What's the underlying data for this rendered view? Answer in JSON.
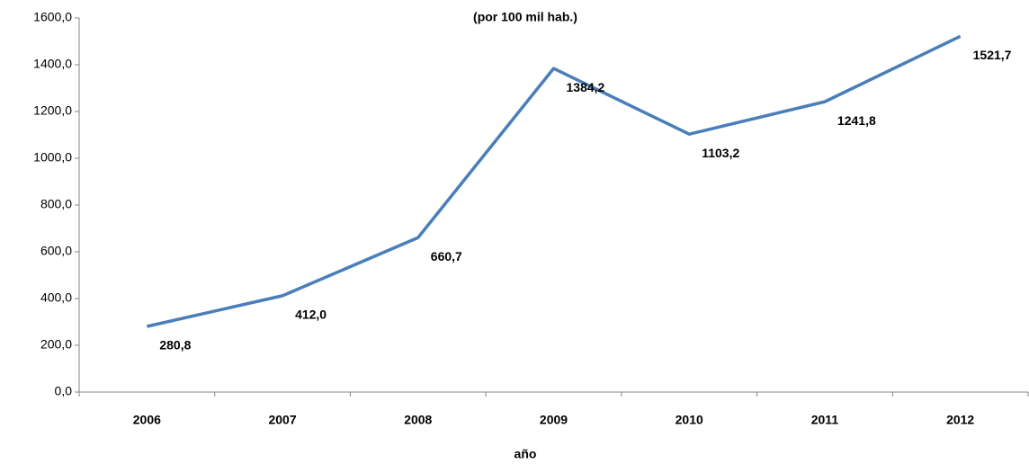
{
  "chart_data": {
    "type": "line",
    "title": "(por 100 mil hab.)",
    "x_label": "año",
    "categories": [
      "2006",
      "2007",
      "2008",
      "2009",
      "2010",
      "2011",
      "2012"
    ],
    "series": [
      {
        "name": null,
        "color": "#4a7ebb",
        "values": [
          280.8,
          412.0,
          660.7,
          1384.2,
          1103.2,
          1241.8,
          1521.7
        ],
        "value_labels": [
          "280,8",
          "412,0",
          "660,7",
          "1384,2",
          "1103,2",
          "1241,8",
          "1521,7"
        ]
      }
    ],
    "ylim": [
      0,
      1600
    ],
    "yticks": [
      {
        "value": 0,
        "label": "0,0"
      },
      {
        "value": 200,
        "label": "200,0"
      },
      {
        "value": 400,
        "label": "400,0"
      },
      {
        "value": 600,
        "label": "600,0"
      },
      {
        "value": 800,
        "label": "800,0"
      },
      {
        "value": 1000,
        "label": "1000,0"
      },
      {
        "value": 1200,
        "label": "1200,0"
      },
      {
        "value": 1400,
        "label": "1400,0"
      },
      {
        "value": 1600,
        "label": "1600,0"
      }
    ],
    "grid": false
  }
}
